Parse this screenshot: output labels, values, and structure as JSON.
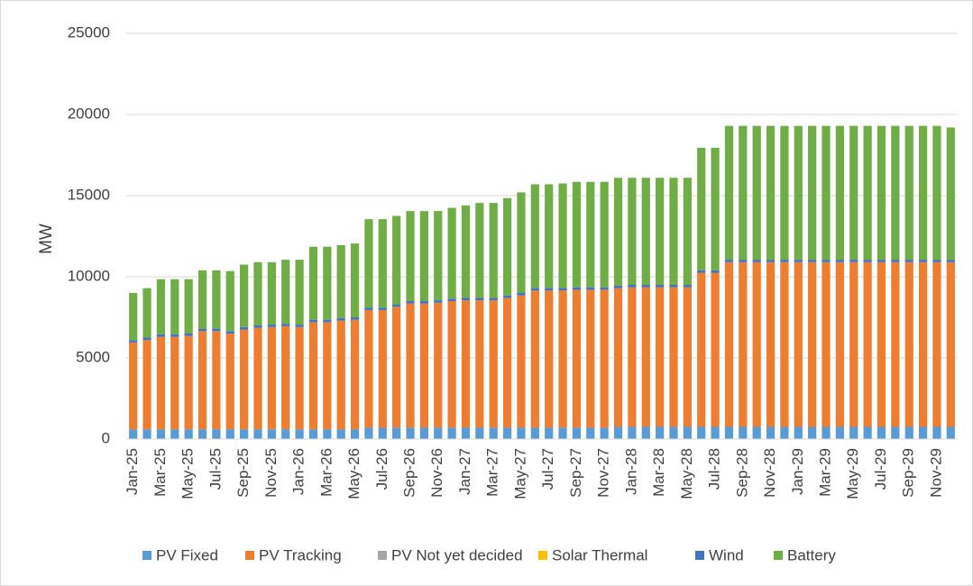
{
  "chart_data": {
    "type": "stacked_bar",
    "y_label": "MW",
    "categories": [
      "Jan-25",
      null,
      "Mar-25",
      null,
      "May-25",
      null,
      "Jul-25",
      null,
      "Sep-25",
      null,
      "Nov-25",
      null,
      "Jan-26",
      null,
      "Mar-26",
      null,
      "May-26",
      null,
      "Jul-26",
      null,
      "Sep-26",
      null,
      "Nov-26",
      null,
      "Jan-27",
      null,
      "Mar-27",
      null,
      "May-27",
      null,
      "Jul-27",
      null,
      "Sep-27",
      null,
      "Nov-27",
      null,
      "Jan-28",
      null,
      "Mar-28",
      null,
      "May-28",
      null,
      "Jul-28",
      null,
      "Sep-28",
      null,
      "Nov-28",
      null,
      "Jan-29",
      null,
      "Mar-29",
      null,
      "May-29",
      null,
      "Jul-29",
      null,
      "Sep-29",
      null,
      "Nov-29",
      null
    ],
    "series": [
      {
        "name": "PV Fixed",
        "color": "#5b9bd5",
        "values": [
          600,
          600,
          600,
          600,
          600,
          600,
          600,
          600,
          600,
          600,
          600,
          600,
          600,
          600,
          600,
          600,
          600,
          700,
          700,
          700,
          700,
          700,
          700,
          700,
          700,
          700,
          700,
          700,
          700,
          700,
          700,
          700,
          700,
          700,
          700,
          750,
          750,
          750,
          750,
          750,
          750,
          750,
          750,
          750,
          750,
          750,
          750,
          750,
          750,
          750,
          750,
          750,
          750,
          750,
          750,
          750,
          750,
          750,
          750,
          750
        ]
      },
      {
        "name": "PV Tracking",
        "color": "#ed7d31",
        "values": [
          5350,
          5500,
          5700,
          5700,
          5750,
          6050,
          6050,
          5900,
          6150,
          6250,
          6300,
          6350,
          6300,
          6600,
          6600,
          6700,
          6750,
          7250,
          7250,
          7450,
          7650,
          7650,
          7700,
          7800,
          7850,
          7850,
          7850,
          8000,
          8150,
          8450,
          8450,
          8450,
          8500,
          8500,
          8500,
          8550,
          8600,
          8600,
          8600,
          8600,
          8600,
          9500,
          9500,
          10150,
          10150,
          10150,
          10150,
          10150,
          10150,
          10150,
          10150,
          10150,
          10150,
          10150,
          10150,
          10150,
          10150,
          10150,
          10150,
          10150
        ]
      },
      {
        "name": "PV Not yet decided",
        "color": "#a5a5a5",
        "values": [
          0,
          0,
          0,
          0,
          0,
          0,
          0,
          0,
          0,
          0,
          0,
          0,
          0,
          0,
          0,
          0,
          0,
          0,
          0,
          0,
          0,
          0,
          0,
          0,
          0,
          0,
          0,
          0,
          0,
          0,
          0,
          0,
          0,
          0,
          0,
          0,
          0,
          0,
          0,
          0,
          0,
          0,
          0,
          0,
          0,
          0,
          0,
          0,
          0,
          0,
          0,
          0,
          0,
          0,
          0,
          0,
          0,
          0,
          0,
          0
        ]
      },
      {
        "name": "Solar Thermal",
        "color": "#ffc000",
        "values": [
          0,
          0,
          0,
          0,
          0,
          0,
          0,
          0,
          0,
          0,
          0,
          0,
          0,
          0,
          0,
          0,
          0,
          0,
          0,
          0,
          0,
          0,
          0,
          0,
          0,
          0,
          0,
          0,
          0,
          0,
          0,
          0,
          0,
          0,
          0,
          0,
          0,
          0,
          0,
          0,
          0,
          0,
          0,
          0,
          0,
          0,
          0,
          0,
          0,
          0,
          0,
          0,
          0,
          0,
          0,
          0,
          0,
          0,
          0,
          0
        ]
      },
      {
        "name": "Wind",
        "color": "#4472c4",
        "values": [
          150,
          150,
          150,
          150,
          150,
          150,
          150,
          150,
          150,
          150,
          150,
          150,
          150,
          150,
          150,
          150,
          150,
          150,
          150,
          150,
          150,
          150,
          150,
          150,
          150,
          150,
          150,
          150,
          150,
          150,
          150,
          150,
          150,
          150,
          150,
          150,
          150,
          150,
          150,
          150,
          150,
          150,
          150,
          150,
          150,
          150,
          150,
          150,
          150,
          150,
          150,
          150,
          150,
          150,
          150,
          150,
          150,
          150,
          150,
          150
        ]
      },
      {
        "name": "Battery",
        "color": "#70ad47",
        "values": [
          2900,
          3050,
          3400,
          3400,
          3350,
          3600,
          3600,
          3700,
          3850,
          3900,
          3850,
          3950,
          4000,
          4500,
          4500,
          4500,
          4550,
          5450,
          5450,
          5450,
          5550,
          5550,
          5500,
          5600,
          5700,
          5850,
          5850,
          6000,
          6200,
          6400,
          6400,
          6450,
          6500,
          6500,
          6500,
          6650,
          6600,
          6600,
          6600,
          6600,
          6600,
          7550,
          7550,
          8250,
          8250,
          8250,
          8250,
          8250,
          8250,
          8250,
          8250,
          8250,
          8250,
          8250,
          8250,
          8250,
          8250,
          8250,
          8250,
          8150
        ]
      }
    ],
    "ylim": [
      0,
      25000
    ],
    "yticks": [
      0,
      5000,
      10000,
      15000,
      20000,
      25000
    ],
    "grid": true,
    "legend": "bottom"
  }
}
